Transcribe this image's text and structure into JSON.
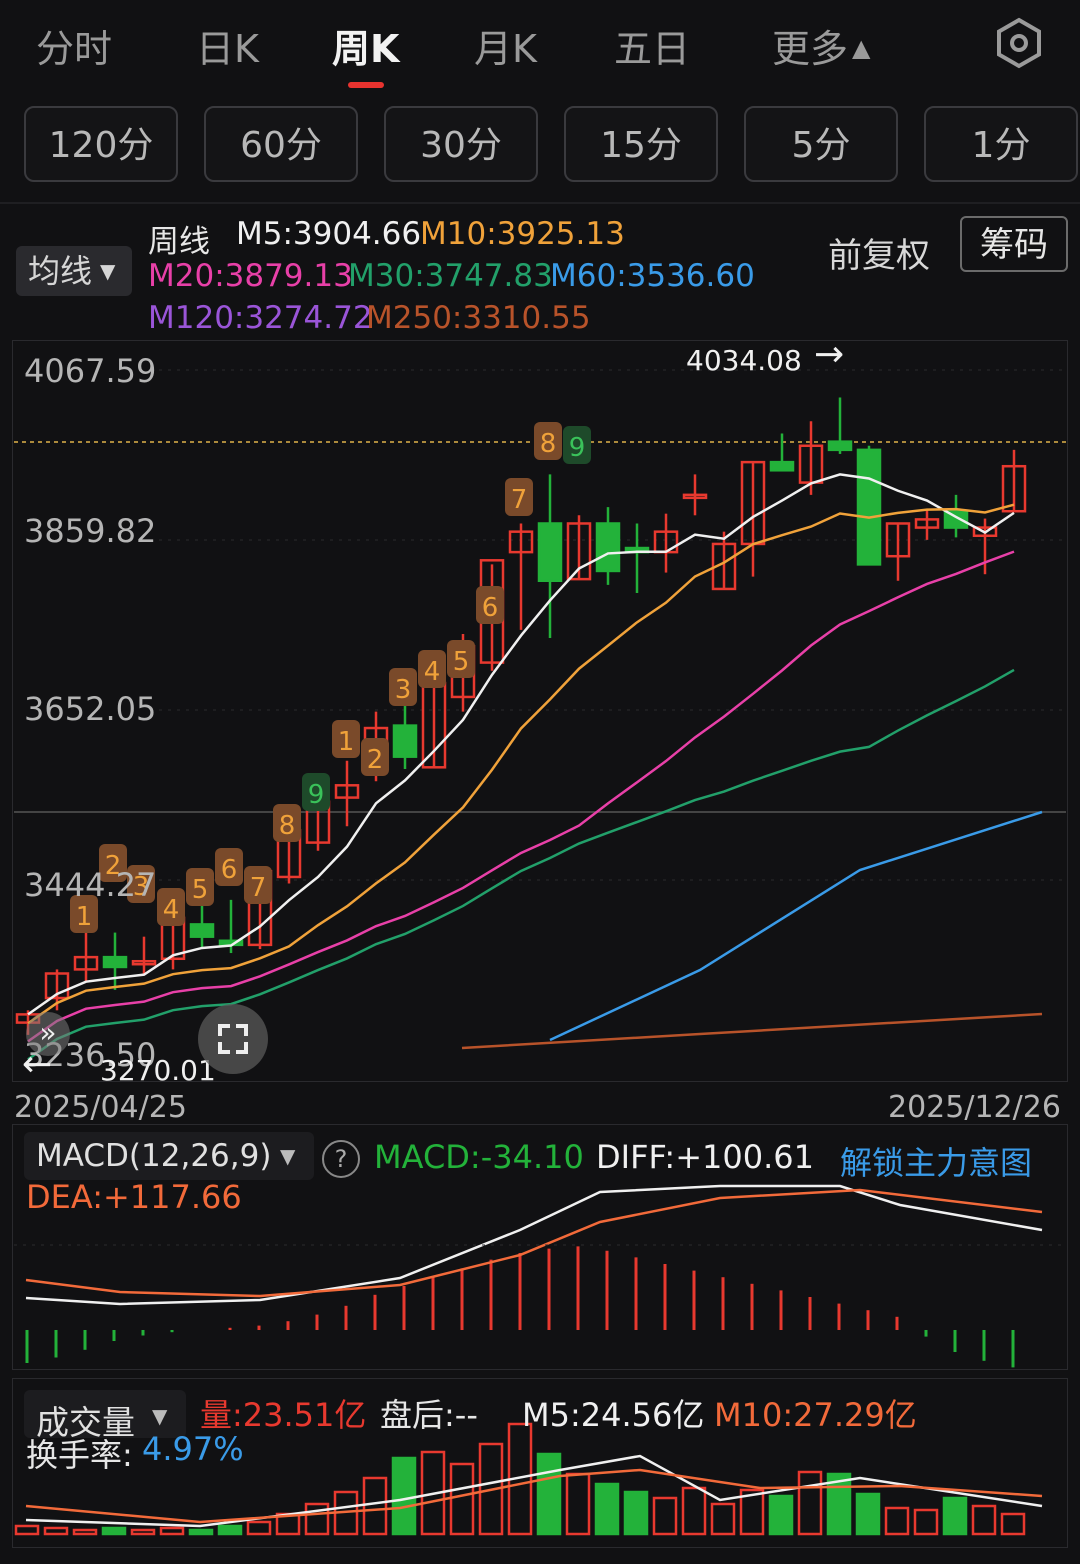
{
  "tabs": [
    {
      "label": "分时",
      "active": false
    },
    {
      "label": "日K",
      "active": false
    },
    {
      "label": "周K",
      "active": true
    },
    {
      "label": "月K",
      "active": false
    },
    {
      "label": "五日",
      "active": false
    },
    {
      "label": "更多",
      "active": false
    }
  ],
  "more_arrow": "▲",
  "settings_icon": "gear-icon",
  "periods": [
    "120分",
    "60分",
    "30分",
    "15分",
    "5分",
    "1分"
  ],
  "legend": {
    "ma_select": "均线",
    "period_name": "周线",
    "ma": [
      {
        "label": "M5:3904.66",
        "color": "#f0f0f0"
      },
      {
        "label": "M10:3925.13",
        "color": "#f0a23a"
      },
      {
        "label": "M20:3879.13",
        "color": "#e840a8"
      },
      {
        "label": "M30:3747.83",
        "color": "#22a06a"
      },
      {
        "label": "M60:3536.60",
        "color": "#3a9be8"
      },
      {
        "label": "M120:3274.72",
        "color": "#9a55d8"
      },
      {
        "label": "M250:3310.55",
        "color": "#b8532a"
      }
    ],
    "adjust": "前复权",
    "chips": "筹码"
  },
  "price_axis": [
    "4067.59",
    "3859.82",
    "3652.05",
    "3444.27",
    "3236.50"
  ],
  "markers": {
    "high": "4034.08",
    "low": "3270.01",
    "high_arrow": "→",
    "low_arrow": "←"
  },
  "dates": {
    "start": "2025/04/25",
    "end": "2025/12/26"
  },
  "td_counts": {
    "first": [
      {
        "n": "1",
        "c": "up"
      },
      {
        "n": "2",
        "c": "up"
      },
      {
        "n": "3",
        "c": "up"
      },
      {
        "n": "4",
        "c": "up"
      },
      {
        "n": "5",
        "c": "up"
      },
      {
        "n": "6",
        "c": "up"
      },
      {
        "n": "7",
        "c": "up"
      },
      {
        "n": "8",
        "c": "up"
      },
      {
        "n": "9",
        "c": "dn"
      }
    ],
    "second": [
      {
        "n": "1",
        "c": "up"
      },
      {
        "n": "2",
        "c": "up"
      },
      {
        "n": "3",
        "c": "up"
      },
      {
        "n": "4",
        "c": "up"
      },
      {
        "n": "5",
        "c": "up"
      },
      {
        "n": "6",
        "c": "up"
      },
      {
        "n": "7",
        "c": "up"
      },
      {
        "n": "8",
        "c": "up"
      },
      {
        "n": "9",
        "c": "dn"
      }
    ]
  },
  "macd": {
    "select": "MACD(12,26,9)",
    "help": "?",
    "macd": "MACD:-34.10",
    "diff": "DIFF:+100.61",
    "unlock": "解锁主力意图",
    "dea": "DEA:+117.66"
  },
  "volume": {
    "select": "成交量",
    "vol": "量:23.51亿",
    "after": "盘后:--",
    "m5": "M5:24.56亿",
    "m10": "M10:27.29亿",
    "turnover_label": "换手率:",
    "turnover": "4.97%"
  },
  "colors": {
    "up": "#e8392f",
    "down": "#23b23a",
    "bg": "#111113"
  },
  "chart_data": {
    "type": "candlestick",
    "period": "weekly",
    "ylim": [
      3236.5,
      4067.59
    ],
    "y_ticks": [
      4067.59,
      3859.82,
      3652.05,
      3444.27,
      3236.5
    ],
    "high": 4034.08,
    "low": 3270.01,
    "candles": [
      {
        "o": 3270,
        "h": 3285,
        "l": 3255,
        "c": 3280
      },
      {
        "o": 3300,
        "h": 3335,
        "l": 3285,
        "c": 3330
      },
      {
        "o": 3335,
        "h": 3400,
        "l": 3320,
        "c": 3350
      },
      {
        "o": 3350,
        "h": 3380,
        "l": 3310,
        "c": 3338
      },
      {
        "o": 3342,
        "h": 3375,
        "l": 3330,
        "c": 3345
      },
      {
        "o": 3348,
        "h": 3410,
        "l": 3335,
        "c": 3398
      },
      {
        "o": 3390,
        "h": 3420,
        "l": 3360,
        "c": 3375
      },
      {
        "o": 3370,
        "h": 3420,
        "l": 3355,
        "c": 3365
      },
      {
        "o": 3365,
        "h": 3460,
        "l": 3360,
        "c": 3455
      },
      {
        "o": 3448,
        "h": 3520,
        "l": 3440,
        "c": 3505
      },
      {
        "o": 3490,
        "h": 3570,
        "l": 3480,
        "c": 3540
      },
      {
        "o": 3545,
        "h": 3590,
        "l": 3510,
        "c": 3560
      },
      {
        "o": 3580,
        "h": 3650,
        "l": 3565,
        "c": 3630
      },
      {
        "o": 3633,
        "h": 3680,
        "l": 3580,
        "c": 3595
      },
      {
        "o": 3582,
        "h": 3690,
        "l": 3582,
        "c": 3685
      },
      {
        "o": 3668,
        "h": 3745,
        "l": 3650,
        "c": 3730
      },
      {
        "o": 3710,
        "h": 3830,
        "l": 3700,
        "c": 3835
      },
      {
        "o": 3845,
        "h": 3880,
        "l": 3750,
        "c": 3870
      },
      {
        "o": 3880,
        "h": 3940,
        "l": 3740,
        "c": 3810
      },
      {
        "o": 3812,
        "h": 3890,
        "l": 3812,
        "c": 3880
      },
      {
        "o": 3880,
        "h": 3900,
        "l": 3805,
        "c": 3822
      },
      {
        "o": 3850,
        "h": 3880,
        "l": 3795,
        "c": 3845
      },
      {
        "o": 3845,
        "h": 3892,
        "l": 3820,
        "c": 3870
      },
      {
        "o": 3915,
        "h": 3940,
        "l": 3890,
        "c": 3915
      },
      {
        "o": 3800,
        "h": 3870,
        "l": 3800,
        "c": 3855
      },
      {
        "o": 3855,
        "h": 3955,
        "l": 3815,
        "c": 3955
      },
      {
        "o": 3955,
        "h": 3990,
        "l": 3945,
        "c": 3945
      },
      {
        "o": 3930,
        "h": 4005,
        "l": 3915,
        "c": 3975
      },
      {
        "o": 3980,
        "h": 4034,
        "l": 3965,
        "c": 3970
      },
      {
        "o": 3970,
        "h": 3975,
        "l": 3830,
        "c": 3830
      },
      {
        "o": 3840,
        "h": 3880,
        "l": 3810,
        "c": 3880
      },
      {
        "o": 3875,
        "h": 3897,
        "l": 3860,
        "c": 3885
      },
      {
        "o": 3895,
        "h": 3915,
        "l": 3863,
        "c": 3875
      },
      {
        "o": 3865,
        "h": 3886,
        "l": 3818,
        "c": 3875
      },
      {
        "o": 3895,
        "h": 3970,
        "l": 3895,
        "c": 3950
      }
    ]
  }
}
